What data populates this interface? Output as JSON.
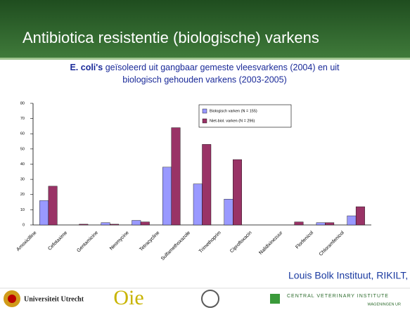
{
  "slide_title": "Antibiotica resistentie (biologische) varkens",
  "subtitle_bold": "E. coli's",
  "subtitle_line1": "geïsoleerd uit gangbaar gemeste vleesvarkens (2004) en  uit",
  "subtitle_line2": "biologisch gehouden varkens (2003-2005)",
  "chart_data": {
    "type": "bar",
    "categories": [
      "Amoxicilline",
      "Cefotaxime",
      "Gentamicine",
      "Neomycine",
      "Tetracycline",
      "Sulfamethoxazole",
      "Trimethoprim",
      "Ciprofloxacin",
      "Nalidixinezuur",
      "Florfenicol",
      "Chloramfenicol"
    ],
    "series": [
      {
        "name": "Biologisch varken (N = 155)",
        "color": "#9999ff",
        "values": [
          16,
          0,
          1.5,
          3,
          38,
          27,
          17,
          0,
          0,
          1.5,
          6
        ]
      },
      {
        "name": "Niet-biol. varken (N = 296)",
        "color": "#993366",
        "values": [
          25.5,
          0.5,
          0.5,
          2,
          64,
          53,
          43,
          0,
          2,
          1.5,
          12
        ]
      }
    ],
    "ylim": [
      0,
      80
    ],
    "yticks": [
      0,
      10,
      20,
      30,
      40,
      50,
      60,
      70,
      80
    ],
    "legend": "top-center"
  },
  "credit": "Louis Bolk Instituut, RIKILT, CVI",
  "logo_uu": "Universiteit Utrecht",
  "logo_oie": "Oie",
  "logo_cvi": "CENTRAL VETERINARY INSTITUTE",
  "logo_wur": "WAGENINGEN UR"
}
